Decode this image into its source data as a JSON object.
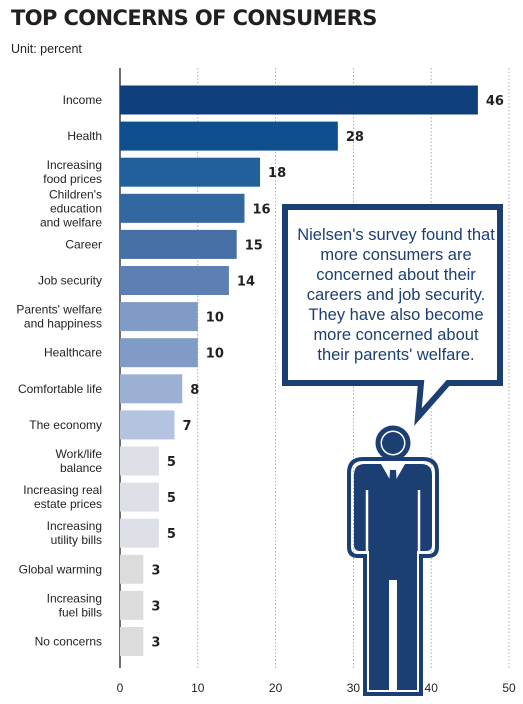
{
  "chart_data": {
    "type": "bar",
    "orientation": "horizontal",
    "title": "TOP CONCERNS OF CONSUMERS",
    "subtitle": "Unit: percent",
    "categories": [
      [
        "Income"
      ],
      [
        "Health"
      ],
      [
        "Increasing",
        "food prices"
      ],
      [
        "Children's",
        "education",
        "and welfare"
      ],
      [
        "Career"
      ],
      [
        "Job security"
      ],
      [
        "Parents' welfare",
        "and happiness"
      ],
      [
        "Healthcare"
      ],
      [
        "Comfortable life"
      ],
      [
        "The economy"
      ],
      [
        "Work/life",
        "balance"
      ],
      [
        "Increasing real",
        "estate prices"
      ],
      [
        "Increasing",
        "utility bills"
      ],
      [
        "Global warming"
      ],
      [
        "Increasing",
        "fuel bills"
      ],
      [
        "No concerns"
      ]
    ],
    "values": [
      46,
      28,
      18,
      16,
      15,
      14,
      10,
      10,
      8,
      7,
      5,
      5,
      5,
      3,
      3,
      3
    ],
    "bar_colors": [
      "#0f3f7a",
      "#0f4f8e",
      "#22609b",
      "#3267a0",
      "#466fa6",
      "#5d7fb2",
      "#7f9bc6",
      "#7f9bc6",
      "#9bb0d2",
      "#b4c3df",
      "#dde1e7",
      "#dde1e7",
      "#dde1e7",
      "#dcdcdc",
      "#dcdcdc",
      "#dcdcdc"
    ],
    "x_ticks": [
      0,
      10,
      20,
      30,
      40,
      50
    ],
    "xlim": [
      0,
      50
    ],
    "grid": true,
    "annotation": "Nielsen's survey found that more consumers are concerned about their careers and job security. They have also become more concerned about their parents' welfare."
  },
  "colors": {
    "accent": "#1c3f73",
    "callout_border": "#1c3f73"
  }
}
